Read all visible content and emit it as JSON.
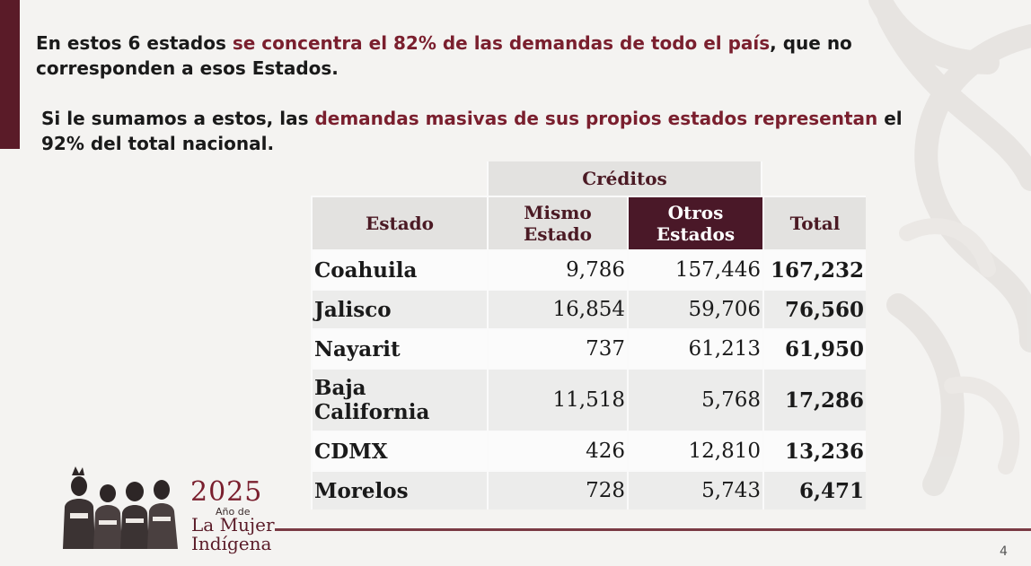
{
  "paragraph1": {
    "part1": "En estos 6 estados ",
    "highlight": "se concentra el 82% de las demandas de todo el país",
    "part2": ", que no corresponden a esos Estados."
  },
  "paragraph2": {
    "part1": "Si le sumamos a estos,  las ",
    "highlight": "demandas masivas de sus propios estados  representan",
    "part2": " el 92% del total nacional."
  },
  "table": {
    "group_header": "Créditos",
    "headers": {
      "estado": "Estado",
      "mismo": [
        "Mismo",
        "Estado"
      ],
      "otros": [
        "Otros",
        "Estados"
      ],
      "total": "Total"
    },
    "rows": [
      {
        "estado": "Coahuila",
        "mismo": "9,786",
        "otros": "157,446",
        "total": "167,232"
      },
      {
        "estado": "Jalisco",
        "mismo": "16,854",
        "otros": "59,706",
        "total": "76,560"
      },
      {
        "estado": "Nayarit",
        "mismo": "737",
        "otros": "61,213",
        "total": "61,950"
      },
      {
        "estado": [
          "Baja",
          "California"
        ],
        "mismo": "11,518",
        "otros": "5,768",
        "total": "17,286"
      },
      {
        "estado": "CDMX",
        "mismo": "426",
        "otros": "12,810",
        "total": "13,236"
      },
      {
        "estado": "Morelos",
        "mismo": "728",
        "otros": "5,743",
        "total": "6,471"
      }
    ]
  },
  "logo": {
    "year": "2025",
    "ano_de": "Año de",
    "line1": "La Mujer",
    "line2": "Indígena"
  },
  "page_number": "4",
  "colors": {
    "accent": "#7a1f2e",
    "dark_header": "#4a1828",
    "side_bar": "#5a1b28"
  }
}
